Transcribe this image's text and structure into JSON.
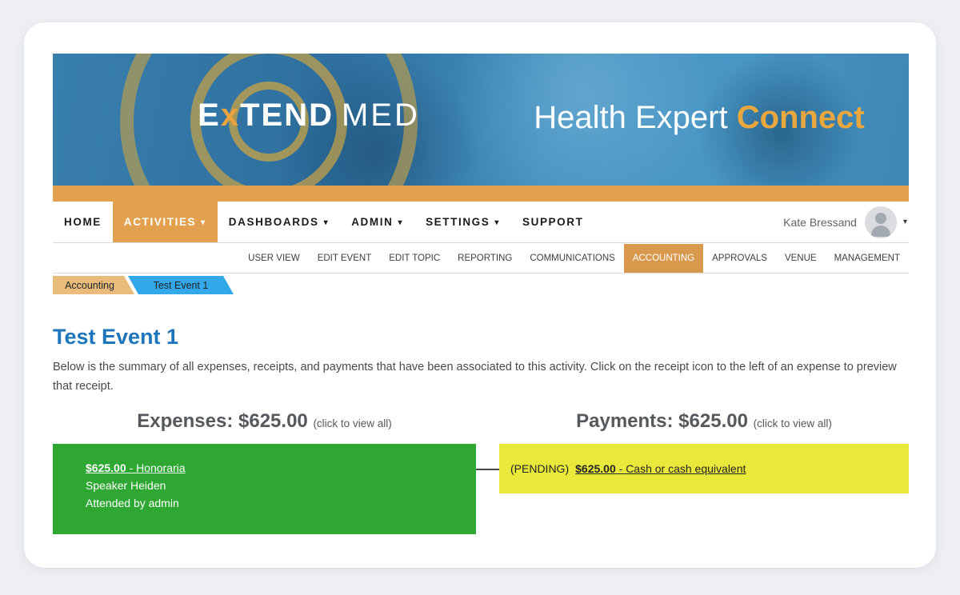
{
  "banner": {
    "logo": {
      "e": "E",
      "x": "x",
      "tend": "TEND",
      "med": "MED"
    },
    "tagline": {
      "white": "Health Expert ",
      "accent": "Connect"
    }
  },
  "nav": {
    "items": [
      {
        "label": "HOME"
      },
      {
        "label": "ACTIVITIES"
      },
      {
        "label": "DASHBOARDS"
      },
      {
        "label": "ADMIN"
      },
      {
        "label": "SETTINGS"
      },
      {
        "label": "SUPPORT"
      }
    ],
    "user": {
      "name": "Kate Bressand"
    }
  },
  "subnav": {
    "items": [
      {
        "label": "USER VIEW"
      },
      {
        "label": "EDIT EVENT"
      },
      {
        "label": "EDIT TOPIC"
      },
      {
        "label": "REPORTING"
      },
      {
        "label": "COMMUNICATIONS"
      },
      {
        "label": "ACCOUNTING"
      },
      {
        "label": "APPROVALS"
      },
      {
        "label": "VENUE"
      },
      {
        "label": "MANAGEMENT"
      }
    ]
  },
  "breadcrumb": {
    "tabs": [
      {
        "label": "Accounting"
      },
      {
        "label": "Test Event 1"
      }
    ]
  },
  "main": {
    "title": "Test Event 1",
    "description": "Below is the summary of all expenses, receipts, and payments that have been associated to this activity. Click on the receipt icon to the left of an expense to preview that receipt.",
    "expenses": {
      "heading": "Expenses: $625.00",
      "hint": "(click to view all)",
      "card": {
        "amount": "$625.00",
        "separator": " - ",
        "label": "Honoraria",
        "line2": "Speaker Heiden",
        "line3": "Attended by admin"
      }
    },
    "payments": {
      "heading": "Payments: $625.00",
      "hint": "(click to view all)",
      "card": {
        "status": "(PENDING)",
        "amount": "$625.00",
        "separator": " - ",
        "label": "Cash or cash equivalent"
      }
    }
  },
  "colors": {
    "accent_orange": "#e2a14e",
    "subnav_active_orange": "#d9994d",
    "tab_tan": "#e9bc7c",
    "tab_blue": "#33a8e8",
    "title_blue": "#1d76bb",
    "expense_green": "#2ea733",
    "payment_yellow": "#e9e93c",
    "logo_accent": "#e8a33f"
  }
}
